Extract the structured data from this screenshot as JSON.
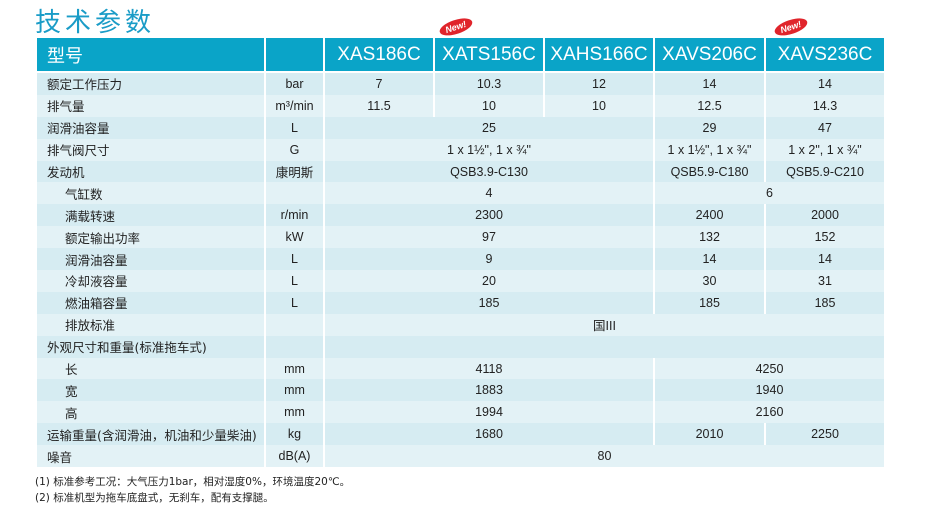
{
  "title": "技术参数",
  "header": {
    "label": "型号",
    "unit": "",
    "models": [
      "XAS186C",
      "XATS156C",
      "XAHS166C",
      "XAVS206C",
      "XAVS236C"
    ],
    "new_badge": "New!"
  },
  "rows": [
    {
      "label": "额定工作压力",
      "unit": "bar",
      "cells": [
        {
          "v": "7",
          "s": 1
        },
        {
          "v": "10.3",
          "s": 1
        },
        {
          "v": "12",
          "s": 1
        },
        {
          "v": "14",
          "s": 1
        },
        {
          "v": "14",
          "s": 1
        }
      ]
    },
    {
      "label": "排气量",
      "unit": "m³/min",
      "cells": [
        {
          "v": "11.5",
          "s": 1
        },
        {
          "v": "10",
          "s": 1
        },
        {
          "v": "10",
          "s": 1
        },
        {
          "v": "12.5",
          "s": 1
        },
        {
          "v": "14.3",
          "s": 1
        }
      ]
    },
    {
      "label": "润滑油容量",
      "unit": "L",
      "cells": [
        {
          "v": "25",
          "s": 3
        },
        {
          "v": "29",
          "s": 1
        },
        {
          "v": "47",
          "s": 1
        }
      ]
    },
    {
      "label": "排气阀尺寸",
      "unit": "G",
      "cells": [
        {
          "v": "1 x 1½\", 1 x ¾\"",
          "s": 3
        },
        {
          "v": "1 x 1½\", 1 x ¾\"",
          "s": 1
        },
        {
          "v": "1 x 2\", 1 x ¾\"",
          "s": 1
        }
      ]
    },
    {
      "label": "发动机",
      "unit": "康明斯",
      "cells": [
        {
          "v": "QSB3.9-C130",
          "s": 3
        },
        {
          "v": "QSB5.9-C180",
          "s": 1
        },
        {
          "v": "QSB5.9-C210",
          "s": 1
        }
      ]
    },
    {
      "label": "气缸数",
      "unit": "",
      "indent": true,
      "cells": [
        {
          "v": "4",
          "s": 3
        },
        {
          "v": "6",
          "s": 2
        }
      ]
    },
    {
      "label": "满载转速",
      "unit": "r/min",
      "indent": true,
      "cells": [
        {
          "v": "2300",
          "s": 3
        },
        {
          "v": "2400",
          "s": 1
        },
        {
          "v": "2000",
          "s": 1
        }
      ]
    },
    {
      "label": "额定输出功率",
      "unit": "kW",
      "indent": true,
      "cells": [
        {
          "v": "97",
          "s": 3
        },
        {
          "v": "132",
          "s": 1
        },
        {
          "v": "152",
          "s": 1
        }
      ]
    },
    {
      "label": "润滑油容量",
      "unit": "L",
      "indent": true,
      "cells": [
        {
          "v": "9",
          "s": 3
        },
        {
          "v": "14",
          "s": 1
        },
        {
          "v": "14",
          "s": 1
        }
      ]
    },
    {
      "label": "冷却液容量",
      "unit": "L",
      "indent": true,
      "cells": [
        {
          "v": "20",
          "s": 3
        },
        {
          "v": "30",
          "s": 1
        },
        {
          "v": "31",
          "s": 1
        }
      ]
    },
    {
      "label": "燃油箱容量",
      "unit": "L",
      "indent": true,
      "cells": [
        {
          "v": "185",
          "s": 3
        },
        {
          "v": "185",
          "s": 1
        },
        {
          "v": "185",
          "s": 1
        }
      ]
    },
    {
      "label": "排放标准",
      "unit": "",
      "indent": true,
      "cells": [
        {
          "v": "国III",
          "s": 5
        }
      ]
    },
    {
      "label": "外观尺寸和重量(标准拖车式)",
      "unit": "",
      "cells": [
        {
          "v": "",
          "s": 5
        }
      ]
    },
    {
      "label": "长",
      "unit": "mm",
      "indent": true,
      "cells": [
        {
          "v": "4118",
          "s": 3
        },
        {
          "v": "4250",
          "s": 2
        }
      ]
    },
    {
      "label": "宽",
      "unit": "mm",
      "indent": true,
      "cells": [
        {
          "v": "1883",
          "s": 3
        },
        {
          "v": "1940",
          "s": 2
        }
      ]
    },
    {
      "label": "高",
      "unit": "mm",
      "indent": true,
      "cells": [
        {
          "v": "1994",
          "s": 3
        },
        {
          "v": "2160",
          "s": 2
        }
      ]
    },
    {
      "label": "运输重量(含润滑油，机油和少量柴油)",
      "unit": "kg",
      "cells": [
        {
          "v": "1680",
          "s": 3
        },
        {
          "v": "2010",
          "s": 1
        },
        {
          "v": "2250",
          "s": 1
        }
      ]
    },
    {
      "label": "噪音",
      "unit": "dB(A)",
      "cells": [
        {
          "v": "80",
          "s": 5
        }
      ]
    }
  ],
  "notes": [
    "(1) 标准参考工况：大气压力1bar，相对湿度0%，环境温度20℃。",
    "(2) 标准机型为拖车底盘式，无刹车，配有支撑腿。"
  ],
  "colors": {
    "header": "#0aa4c8",
    "title": "#1a9cc7",
    "badge": "#e0242b"
  }
}
